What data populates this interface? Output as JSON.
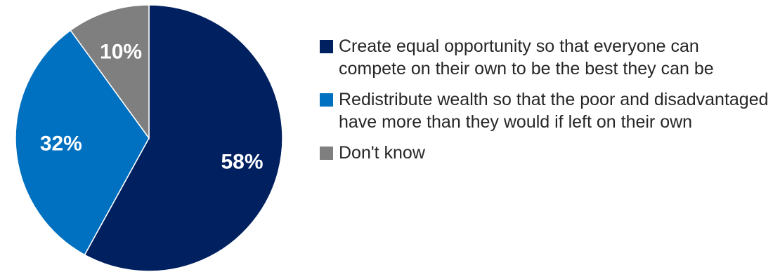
{
  "chart_data": {
    "type": "pie",
    "slices": [
      {
        "label": "Create equal opportunity so that everyone can compete on their own to be the best they can be",
        "value": 58,
        "display": "58%",
        "color": "#002060"
      },
      {
        "label": "Redistribute wealth so that the poor and disadvantaged have more than they would if left on their own",
        "value": 32,
        "display": "32%",
        "color": "#0070C0"
      },
      {
        "label": "Don't know",
        "value": 10,
        "display": "10%",
        "color": "#7F7F7F"
      }
    ],
    "start_angle_deg": 0,
    "direction": "clockwise",
    "data_label_color": "#ffffff",
    "legend_position": "right"
  }
}
